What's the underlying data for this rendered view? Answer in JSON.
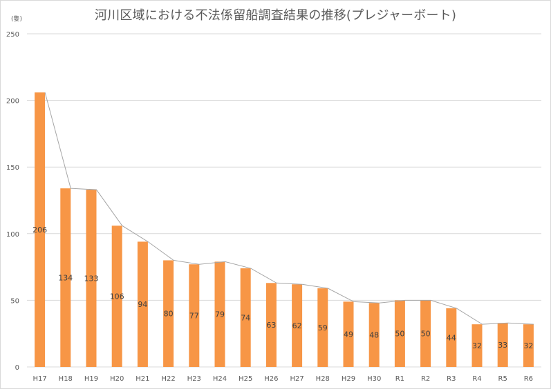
{
  "chart_data": {
    "type": "bar",
    "title": "河川区域における不法係留船調査結果の推移(プレジャーボート)",
    "unit_label": "(隻)",
    "categories": [
      "H17",
      "H18",
      "H19",
      "H20",
      "H21",
      "H22",
      "H23",
      "H24",
      "H25",
      "H26",
      "H27",
      "H28",
      "H29",
      "H30",
      "R1",
      "R2",
      "R3",
      "R4",
      "R5",
      "R6"
    ],
    "values": [
      206,
      134,
      133,
      106,
      94,
      80,
      77,
      79,
      74,
      63,
      62,
      59,
      49,
      48,
      50,
      50,
      44,
      32,
      33,
      32
    ],
    "y_ticks": [
      "0",
      "50",
      "100",
      "150",
      "200",
      "250"
    ],
    "ylim": [
      0,
      250
    ],
    "grid": true,
    "legend": "none",
    "bar_color": "#f79646",
    "line_color": "#a6a6a6",
    "gridline_color": "#d9d9d9"
  }
}
